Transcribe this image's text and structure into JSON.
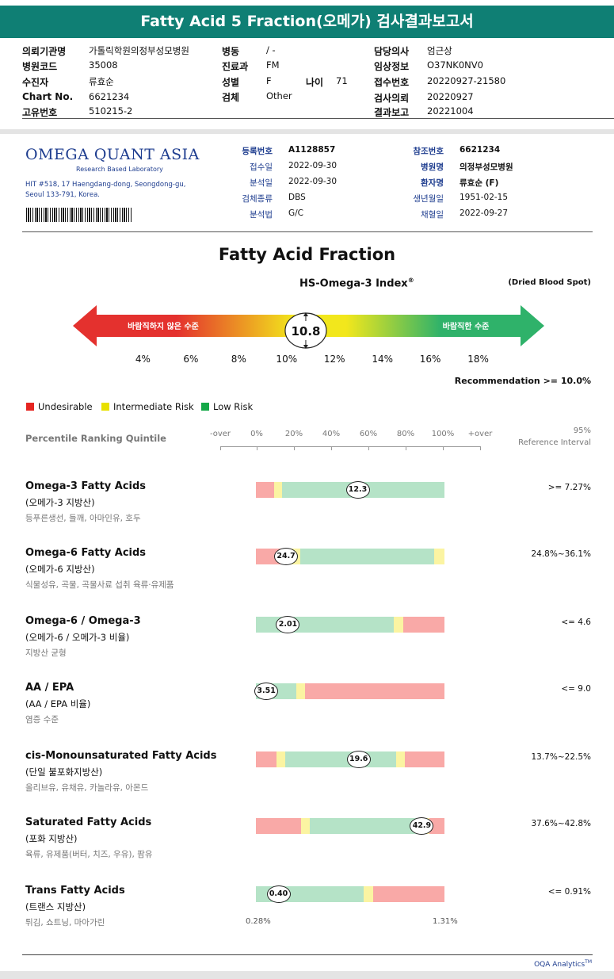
{
  "report_title": "Fatty Acid 5 Fraction(오메가) 검사결과보고서",
  "header": {
    "col1": [
      {
        "label": "의뢰기관명",
        "value": "가톨릭학원의정부성모병원"
      },
      {
        "label": "병원코드",
        "value": "35008"
      },
      {
        "label": "수진자",
        "value": "류효순"
      },
      {
        "label": "Chart No.",
        "value": "6621234"
      },
      {
        "label": "고유번호",
        "value": "510215-2"
      }
    ],
    "col2": [
      {
        "label": "병동",
        "value": "/ -"
      },
      {
        "label": "진료과",
        "value": "FM"
      },
      {
        "label": "성별",
        "value": "F"
      },
      {
        "label": "검체",
        "value": "Other"
      }
    ],
    "age": {
      "label": "나이",
      "value": "71"
    },
    "col3": [
      {
        "label": "담당의사",
        "value": "엄근상"
      },
      {
        "label": "임상정보",
        "value": "O37NK0NV0"
      },
      {
        "label": "접수번호",
        "value": "20220927-21580"
      },
      {
        "label": "검사의뢰",
        "value": "20220927"
      },
      {
        "label": "결과보고",
        "value": "20221004"
      }
    ]
  },
  "lab": {
    "name_main": "OMEGA QUANT ASIA",
    "name_sub": "Research Based Laboratory",
    "address_line1": "HIT #518, 17 Haengdang-dong, Seongdong-gu,",
    "address_line2": "Seoul 133-791, Korea."
  },
  "sample_info": {
    "left": [
      {
        "label": "등록번호",
        "value": "A1128857",
        "bold": true
      },
      {
        "label": "접수일",
        "value": "2022-09-30"
      },
      {
        "label": "분석일",
        "value": "2022-09-30"
      },
      {
        "label": "검체종류",
        "value": "DBS"
      },
      {
        "label": "분석법",
        "value": "G/C"
      }
    ],
    "right": [
      {
        "label": "참조번호",
        "value": "6621234",
        "bold": true
      },
      {
        "label": "병원명",
        "value": "의정부성모병원",
        "bold": true
      },
      {
        "label": "환자명",
        "value": "류효순 (F)",
        "bold": true
      },
      {
        "label": "생년월일",
        "value": "1951-02-15"
      },
      {
        "label": "채혈일",
        "value": "2022-09-27"
      }
    ]
  },
  "section_title": "Fatty Acid Fraction",
  "index_title": "HS-Omega-3 Index",
  "index_title_mark": "®",
  "sample_type": "(Dried Blood Spot)",
  "index_scale": {
    "left_label": "바람직하지 않은 수준",
    "right_label": "바람직한 수준",
    "value": 10.8,
    "value_label": "10.8",
    "min": 2,
    "max": 20,
    "ticks": [
      "4%",
      "6%",
      "8%",
      "10%",
      "12%",
      "14%",
      "16%",
      "18%"
    ],
    "tick_values": [
      4,
      6,
      8,
      10,
      12,
      14,
      16,
      18
    ],
    "colors": {
      "red": "#e4312e",
      "yellow": "#f2e71c",
      "green": "#2fb26a"
    }
  },
  "recommendation": "Recommendation  >= 10.0%",
  "legend": [
    {
      "label": "Undesirable",
      "color": "#e52521"
    },
    {
      "label": "Intermediate Risk",
      "color": "#e8e000"
    },
    {
      "label": "Low Risk",
      "color": "#14a848"
    }
  ],
  "percentile": {
    "title": "Percentile Ranking Quintile",
    "ticks": [
      "-over",
      "0%",
      "20%",
      "40%",
      "60%",
      "80%",
      "100%",
      "+over"
    ],
    "ref_line1": "95%",
    "ref_line2": "Reference Interval"
  },
  "bar_colors": {
    "red": "#f9a9a7",
    "yellow": "#fbf4a2",
    "green": "#b5e3c7"
  },
  "results": [
    {
      "name": "Omega-3 Fatty Acids",
      "kor": "(오메가-3 지방산)",
      "desc": "등푸른생선, 들깨, 아마인유, 호두",
      "ref": ">= 7.27%",
      "value_label": "12.3",
      "marker_pct": 54,
      "segments": [
        {
          "c": "red",
          "w": 9.5
        },
        {
          "c": "yellow",
          "w": 4.5
        },
        {
          "c": "green",
          "w": 86
        }
      ]
    },
    {
      "name": "Omega-6 Fatty Acids",
      "kor": "(오메가-6 지방산)",
      "desc": "식물성유, 곡물, 곡물사료 섭취 육류·유제품",
      "ref": "24.8%~36.1%",
      "value_label": "24.7",
      "marker_pct": 16,
      "segments": [
        {
          "c": "red",
          "w": 18
        },
        {
          "c": "yellow",
          "w": 5.5
        },
        {
          "c": "green",
          "w": 71
        },
        {
          "c": "yellow",
          "w": 5.5
        }
      ]
    },
    {
      "name": "Omega-6 / Omega-3",
      "kor": "(오메가-6 / 오메가-3 비율)",
      "desc": "지방산 균형",
      "ref": "<= 4.6",
      "value_label": "2.01",
      "marker_pct": 17,
      "segments": [
        {
          "c": "green",
          "w": 73
        },
        {
          "c": "yellow",
          "w": 5
        },
        {
          "c": "red",
          "w": 22
        }
      ]
    },
    {
      "name": "AA / EPA",
      "kor": "(AA / EPA 비율)",
      "desc": "염증 수준",
      "ref": "<= 9.0",
      "value_label": "3.51",
      "marker_pct": 5.5,
      "segments": [
        {
          "c": "green",
          "w": 21.5
        },
        {
          "c": "yellow",
          "w": 4.5
        },
        {
          "c": "red",
          "w": 74
        }
      ]
    },
    {
      "name": "cis-Monounsaturated Fatty Acids",
      "kor": "(단일 불포화지방산)",
      "desc": "올리브유, 유채유, 카놀라유, 아몬드",
      "ref": "13.7%~22.5%",
      "value_label": "19.6",
      "marker_pct": 54.5,
      "segments": [
        {
          "c": "red",
          "w": 11
        },
        {
          "c": "yellow",
          "w": 4.5
        },
        {
          "c": "green",
          "w": 59
        },
        {
          "c": "yellow",
          "w": 4.5
        },
        {
          "c": "red",
          "w": 21
        }
      ]
    },
    {
      "name": "Saturated Fatty Acids",
      "kor": "(포화 지방산)",
      "desc": "육류, 유제품(버터, 치즈, 우유), 팜유",
      "ref": "37.6%~42.8%",
      "value_label": "42.9",
      "marker_pct": 88,
      "segments": [
        {
          "c": "red",
          "w": 24
        },
        {
          "c": "yellow",
          "w": 4.5
        },
        {
          "c": "green",
          "w": 59
        },
        {
          "c": "yellow",
          "w": 4.5
        },
        {
          "c": "red",
          "w": 8
        }
      ]
    },
    {
      "name": "Trans Fatty Acids",
      "kor": "(트랜스 지방산)",
      "desc": "튀김, 쇼트닝, 마아가린",
      "ref": "<= 0.91%",
      "value_label": "0.40",
      "marker_pct": 12,
      "segments": [
        {
          "c": "green",
          "w": 57
        },
        {
          "c": "yellow",
          "w": 5
        },
        {
          "c": "red",
          "w": 38
        }
      ]
    }
  ],
  "tfa_range": {
    "min": "0.28%",
    "max": "1.31%"
  },
  "footer": "OQA Analytics",
  "footer_mark": "TM"
}
